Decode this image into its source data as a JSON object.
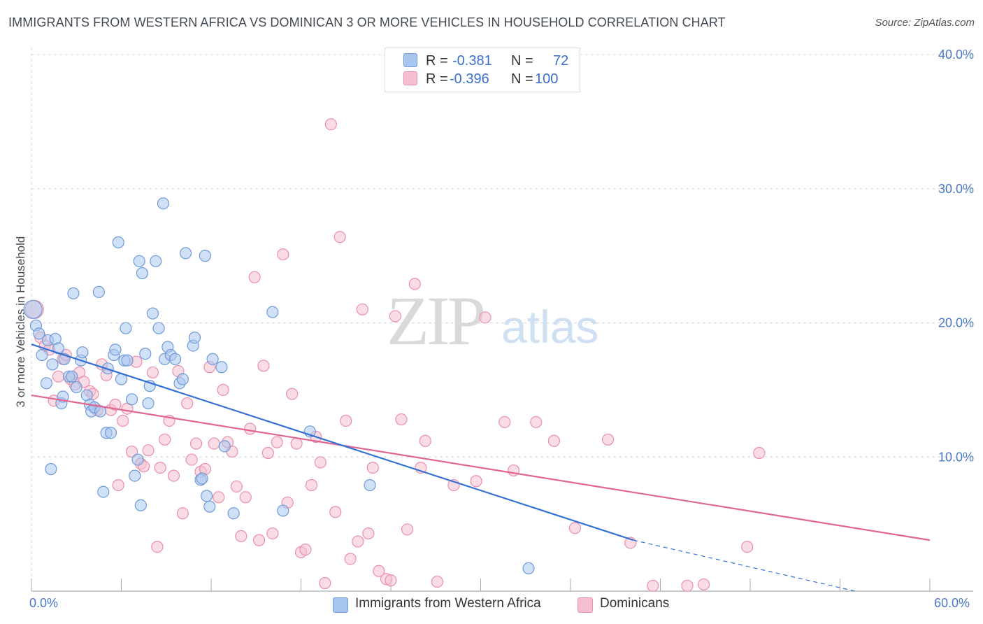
{
  "title": "IMMIGRANTS FROM WESTERN AFRICA VS DOMINICAN 3 OR MORE VEHICLES IN HOUSEHOLD CORRELATION CHART",
  "source": "Source: ZipAtlas.com",
  "watermark": {
    "zip": "ZIP",
    "atlas": "atlas"
  },
  "colors": {
    "blue_fill": "#a9c6ee",
    "blue_stroke": "#6f9ad8",
    "blue_line": "#3470d4",
    "pink_fill": "#f6bfd0",
    "pink_stroke": "#e98fab",
    "pink_line": "#e06690",
    "tick_text": "#4a78c8",
    "grid": "#d8d8d8"
  },
  "stats": [
    {
      "r_label": "R =",
      "r_value": "-0.381",
      "n_label": "N =",
      "n_value": "72",
      "series": "blue"
    },
    {
      "r_label": "R =",
      "r_value": "-0.396",
      "n_label": "N =",
      "n_value": "100",
      "series": "pink"
    }
  ],
  "legend": [
    {
      "label": "Immigrants from Western Africa",
      "series": "blue"
    },
    {
      "label": "Dominicans",
      "series": "pink"
    }
  ],
  "chart_data": {
    "type": "scatter",
    "title": "IMMIGRANTS FROM WESTERN AFRICA VS DOMINICAN 3 OR MORE VEHICLES IN HOUSEHOLD CORRELATION CHART",
    "xlabel": "",
    "ylabel": "3 or more Vehicles in Household",
    "xlim": [
      0,
      60
    ],
    "ylim": [
      0,
      40
    ],
    "x_tick_labels": [
      "0.0%",
      "60.0%"
    ],
    "y_ticks": [
      10,
      20,
      30,
      40
    ],
    "y_tick_labels": [
      "10.0%",
      "20.0%",
      "30.0%",
      "40.0%"
    ],
    "grid": true,
    "legend_position": "bottom",
    "series": [
      {
        "name": "Immigrants from Western Africa",
        "color": "blue",
        "trend": {
          "x": [
            0,
            40.2
          ],
          "y": [
            18.4,
            3.8
          ],
          "dashed_to": [
            41,
            3.5
          ],
          "dash_end": [
            55,
            0
          ]
        },
        "points": [
          [
            0.1,
            21.0
          ],
          [
            0.3,
            19.8
          ],
          [
            0.5,
            19.2
          ],
          [
            0.7,
            17.6
          ],
          [
            1.1,
            18.7
          ],
          [
            1.0,
            15.5
          ],
          [
            1.3,
            9.1
          ],
          [
            1.4,
            16.9
          ],
          [
            1.6,
            18.8
          ],
          [
            1.8,
            18.1
          ],
          [
            2.0,
            14.0
          ],
          [
            2.1,
            14.5
          ],
          [
            2.2,
            17.3
          ],
          [
            2.5,
            16.0
          ],
          [
            2.7,
            16.0
          ],
          [
            2.8,
            22.2
          ],
          [
            3.0,
            15.2
          ],
          [
            3.3,
            17.2
          ],
          [
            3.4,
            17.8
          ],
          [
            3.7,
            14.6
          ],
          [
            3.9,
            13.9
          ],
          [
            4.0,
            13.4
          ],
          [
            4.2,
            13.7
          ],
          [
            4.5,
            22.3
          ],
          [
            4.6,
            13.4
          ],
          [
            4.8,
            7.4
          ],
          [
            5.0,
            11.8
          ],
          [
            5.1,
            16.6
          ],
          [
            5.3,
            11.8
          ],
          [
            5.5,
            17.6
          ],
          [
            5.6,
            18.0
          ],
          [
            5.8,
            26.0
          ],
          [
            6.0,
            15.8
          ],
          [
            6.2,
            17.2
          ],
          [
            6.3,
            19.6
          ],
          [
            6.4,
            17.2
          ],
          [
            6.7,
            14.3
          ],
          [
            6.9,
            8.6
          ],
          [
            7.1,
            9.8
          ],
          [
            7.2,
            24.6
          ],
          [
            7.3,
            6.4
          ],
          [
            7.4,
            23.7
          ],
          [
            7.6,
            17.7
          ],
          [
            7.8,
            14.0
          ],
          [
            7.9,
            15.3
          ],
          [
            8.1,
            20.7
          ],
          [
            8.3,
            24.6
          ],
          [
            8.5,
            19.6
          ],
          [
            8.8,
            28.9
          ],
          [
            8.9,
            17.3
          ],
          [
            9.1,
            18.2
          ],
          [
            9.3,
            17.6
          ],
          [
            9.6,
            17.3
          ],
          [
            9.9,
            15.5
          ],
          [
            10.1,
            15.8
          ],
          [
            10.3,
            25.2
          ],
          [
            10.8,
            18.3
          ],
          [
            10.9,
            18.9
          ],
          [
            11.3,
            8.3
          ],
          [
            11.4,
            8.4
          ],
          [
            11.6,
            25.0
          ],
          [
            11.7,
            7.1
          ],
          [
            11.9,
            6.3
          ],
          [
            12.1,
            17.3
          ],
          [
            12.7,
            16.7
          ],
          [
            12.9,
            10.8
          ],
          [
            13.5,
            5.8
          ],
          [
            16.1,
            20.8
          ],
          [
            16.8,
            6.0
          ],
          [
            18.6,
            11.9
          ],
          [
            22.6,
            7.9
          ],
          [
            33.2,
            1.7
          ]
        ]
      },
      {
        "name": "Dominicans",
        "color": "pink",
        "trend": {
          "x": [
            0,
            60
          ],
          "y": [
            14.6,
            3.8
          ]
        },
        "points": [
          [
            0.2,
            21.0
          ],
          [
            0.6,
            18.9
          ],
          [
            0.9,
            18.3
          ],
          [
            1.2,
            18.0
          ],
          [
            1.5,
            14.2
          ],
          [
            1.8,
            16.0
          ],
          [
            2.1,
            17.3
          ],
          [
            2.3,
            17.6
          ],
          [
            2.6,
            15.8
          ],
          [
            2.9,
            15.4
          ],
          [
            3.2,
            16.3
          ],
          [
            3.5,
            15.6
          ],
          [
            3.9,
            14.9
          ],
          [
            4.1,
            14.7
          ],
          [
            4.4,
            13.5
          ],
          [
            4.7,
            16.9
          ],
          [
            5.0,
            16.1
          ],
          [
            5.3,
            13.5
          ],
          [
            5.6,
            13.9
          ],
          [
            5.8,
            7.9
          ],
          [
            6.1,
            12.7
          ],
          [
            6.4,
            13.6
          ],
          [
            6.7,
            10.4
          ],
          [
            7.0,
            17.1
          ],
          [
            7.3,
            9.5
          ],
          [
            7.5,
            9.3
          ],
          [
            7.8,
            10.5
          ],
          [
            8.1,
            16.3
          ],
          [
            8.4,
            3.3
          ],
          [
            8.6,
            9.2
          ],
          [
            8.9,
            11.3
          ],
          [
            9.2,
            12.7
          ],
          [
            9.5,
            8.6
          ],
          [
            9.8,
            16.4
          ],
          [
            10.1,
            5.8
          ],
          [
            10.4,
            14.0
          ],
          [
            10.7,
            9.8
          ],
          [
            11.0,
            11.0
          ],
          [
            11.3,
            8.9
          ],
          [
            11.6,
            9.1
          ],
          [
            11.9,
            16.7
          ],
          [
            12.2,
            11.0
          ],
          [
            12.5,
            7.0
          ],
          [
            12.8,
            15.0
          ],
          [
            13.1,
            11.1
          ],
          [
            13.4,
            10.4
          ],
          [
            13.7,
            7.8
          ],
          [
            14.0,
            4.1
          ],
          [
            14.3,
            7.0
          ],
          [
            14.6,
            12.1
          ],
          [
            14.9,
            23.4
          ],
          [
            15.2,
            3.8
          ],
          [
            15.5,
            16.8
          ],
          [
            15.8,
            10.3
          ],
          [
            16.1,
            4.3
          ],
          [
            16.4,
            11.1
          ],
          [
            16.8,
            25.1
          ],
          [
            17.1,
            6.6
          ],
          [
            17.4,
            14.7
          ],
          [
            17.7,
            11.0
          ],
          [
            18.0,
            2.9
          ],
          [
            18.3,
            3.1
          ],
          [
            18.7,
            7.9
          ],
          [
            19.0,
            11.5
          ],
          [
            19.3,
            9.6
          ],
          [
            19.6,
            0.6
          ],
          [
            20.0,
            34.8
          ],
          [
            20.3,
            5.9
          ],
          [
            20.6,
            26.4
          ],
          [
            21.0,
            12.7
          ],
          [
            21.3,
            2.4
          ],
          [
            21.8,
            3.7
          ],
          [
            22.1,
            21.0
          ],
          [
            22.5,
            4.3
          ],
          [
            22.8,
            9.2
          ],
          [
            23.2,
            1.5
          ],
          [
            23.7,
            0.9
          ],
          [
            24.0,
            0.8
          ],
          [
            24.3,
            20.5
          ],
          [
            24.7,
            12.8
          ],
          [
            25.1,
            4.6
          ],
          [
            25.6,
            22.9
          ],
          [
            26.0,
            9.2
          ],
          [
            26.3,
            11.2
          ],
          [
            27.1,
            0.7
          ],
          [
            28.2,
            7.9
          ],
          [
            29.7,
            8.2
          ],
          [
            30.3,
            20.4
          ],
          [
            31.6,
            12.6
          ],
          [
            32.2,
            9.0
          ],
          [
            33.7,
            12.6
          ],
          [
            34.9,
            11.2
          ],
          [
            36.3,
            4.7
          ],
          [
            38.5,
            11.3
          ],
          [
            40.0,
            3.6
          ],
          [
            41.5,
            0.4
          ],
          [
            43.8,
            0.4
          ],
          [
            44.9,
            0.5
          ],
          [
            47.8,
            3.3
          ],
          [
            48.6,
            10.3
          ]
        ]
      }
    ]
  }
}
